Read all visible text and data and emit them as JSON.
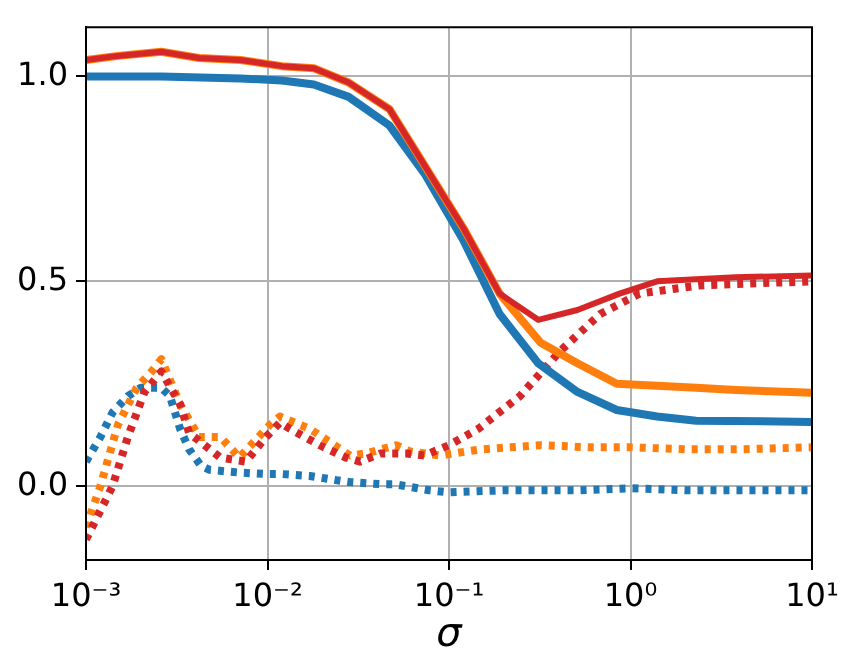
{
  "chart_data": {
    "type": "line",
    "xlabel": "σ",
    "log": "x",
    "grid": true,
    "legend": false,
    "marker": "none",
    "xlim": [
      0.001,
      10
    ],
    "xticks": [
      {
        "value": 0.001,
        "label": "10⁻³"
      },
      {
        "value": 0.01,
        "label": "10⁻²"
      },
      {
        "value": 0.1,
        "label": "10⁻¹"
      },
      {
        "value": 1,
        "label": "10⁰"
      },
      {
        "value": 10,
        "label": "10¹"
      }
    ],
    "ylim": [
      -0.18,
      1.12
    ],
    "yticks": [
      {
        "value": 0,
        "label": "0.0"
      },
      {
        "value": 0.5,
        "label": "0.5"
      },
      {
        "value": 1,
        "label": "1.0"
      }
    ],
    "series": [
      {
        "color": "#1f77b4",
        "line_style": "dotted",
        "x": [
          0.001,
          0.0012,
          0.0014,
          0.0017,
          0.002,
          0.0026,
          0.0029,
          0.0033,
          0.0037,
          0.0043,
          0.0048,
          0.0071,
          0.0098,
          0.0117,
          0.0171,
          0.0238,
          0.0285,
          0.042,
          0.05,
          0.078,
          0.1,
          0.2,
          0.5,
          1,
          2,
          5,
          10
        ],
        "values": [
          0.06,
          0.12,
          0.18,
          0.22,
          0.24,
          0.24,
          0.22,
          0.14,
          0.09,
          0.05,
          0.04,
          0.033,
          0.03,
          0.03,
          0.025,
          0.015,
          0.01,
          0.005,
          0.005,
          -0.01,
          -0.015,
          -0.01,
          -0.01,
          -0.005,
          -0.01,
          -0.01,
          -0.01
        ]
      },
      {
        "color": "#ff7f0e",
        "line_style": "dotted",
        "x": [
          0.001,
          0.0012,
          0.0015,
          0.0019,
          0.0023,
          0.0026,
          0.0033,
          0.0042,
          0.0055,
          0.007,
          0.0103,
          0.0117,
          0.0171,
          0.0238,
          0.0285,
          0.035,
          0.051,
          0.061,
          0.089,
          0.15,
          0.32,
          0.6,
          1,
          2,
          4,
          10
        ],
        "values": [
          -0.1,
          0.0,
          0.15,
          0.24,
          0.28,
          0.31,
          0.2,
          0.12,
          0.12,
          0.07,
          0.15,
          0.17,
          0.14,
          0.098,
          0.075,
          0.08,
          0.1,
          0.085,
          0.075,
          0.09,
          0.1,
          0.095,
          0.095,
          0.09,
          0.09,
          0.095
        ]
      },
      {
        "color": "#d62728",
        "line_style": "dotted",
        "x": [
          0.001,
          0.0014,
          0.0017,
          0.0021,
          0.0026,
          0.0033,
          0.0037,
          0.0055,
          0.0076,
          0.0098,
          0.0117,
          0.0133,
          0.0194,
          0.027,
          0.0324,
          0.042,
          0.058,
          0.073,
          0.1,
          0.145,
          0.246,
          0.41,
          0.68,
          1.12,
          2.4,
          10
        ],
        "values": [
          -0.13,
          0.0,
          0.12,
          0.23,
          0.28,
          0.2,
          0.13,
          0.07,
          0.06,
          0.12,
          0.155,
          0.14,
          0.1,
          0.07,
          0.06,
          0.08,
          0.08,
          0.075,
          0.1,
          0.14,
          0.22,
          0.33,
          0.42,
          0.47,
          0.49,
          0.5
        ]
      },
      {
        "color": "#1f77b4",
        "line_style": "solid",
        "x": [
          0.001,
          0.0026,
          0.0071,
          0.012,
          0.018,
          0.028,
          0.047,
          0.074,
          0.12,
          0.19,
          0.31,
          0.51,
          0.84,
          1.4,
          2.3,
          10
        ],
        "values": [
          1.0,
          1.0,
          0.995,
          0.99,
          0.98,
          0.95,
          0.88,
          0.76,
          0.6,
          0.42,
          0.3,
          0.23,
          0.186,
          0.17,
          0.16,
          0.157
        ]
      },
      {
        "color": "#ff7f0e",
        "line_style": "solid",
        "x": [
          0.001,
          0.0015,
          0.0026,
          0.0042,
          0.0071,
          0.012,
          0.018,
          0.028,
          0.047,
          0.074,
          0.12,
          0.19,
          0.32,
          0.51,
          0.84,
          1.4,
          2.3,
          3.8,
          10
        ],
        "values": [
          1.04,
          1.05,
          1.06,
          1.045,
          1.04,
          1.025,
          1.02,
          0.985,
          0.92,
          0.78,
          0.63,
          0.47,
          0.35,
          0.3,
          0.25,
          0.245,
          0.24,
          0.235,
          0.228
        ]
      },
      {
        "color": "#d62728",
        "line_style": "solid",
        "x": [
          0.001,
          0.0015,
          0.0026,
          0.0042,
          0.0071,
          0.012,
          0.018,
          0.028,
          0.047,
          0.074,
          0.12,
          0.19,
          0.31,
          0.51,
          0.87,
          1.4,
          2.3,
          3.8,
          10
        ],
        "values": [
          1.04,
          1.05,
          1.06,
          1.045,
          1.04,
          1.025,
          1.02,
          0.985,
          0.92,
          0.78,
          0.63,
          0.47,
          0.406,
          0.43,
          0.47,
          0.5,
          0.505,
          0.51,
          0.514
        ]
      }
    ]
  }
}
